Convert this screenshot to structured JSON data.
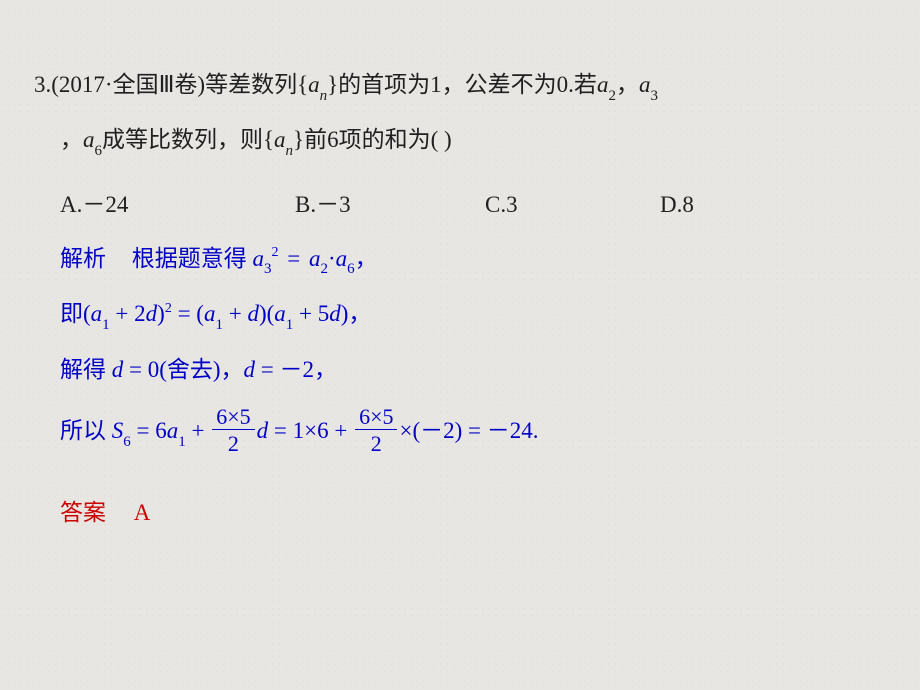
{
  "colors": {
    "background": "#e7e6e2",
    "text_main": "#202020",
    "text_blue": "#0200c6",
    "text_red": "#cc0200"
  },
  "typography": {
    "family": "Times New Roman / SimSun serif",
    "base_fontsize_pt": 17,
    "subscript_fontsize_pt": 11,
    "superscript_fontsize_pt": 10
  },
  "question": {
    "number": "3.",
    "source_prefix": "(2017·全国Ⅲ卷)",
    "line1_part1": "等差数列{",
    "seq_var": "a",
    "seq_sub": "n",
    "line1_part2": "}的首项为1，公差不为0.若",
    "a2_var": "a",
    "a2_sub": "2",
    "comma1": "，",
    "a3_var": "a",
    "a3_sub": "3",
    "line2_lead_comma": "，",
    "a6_var": "a",
    "a6_sub": "6",
    "line2_mid": "成等比数列，则{",
    "line2_end": "}前6项的和为(       )",
    "options": {
      "A": "A.－24",
      "B": "B.－3",
      "C": "C.3",
      "D": "D.8"
    }
  },
  "solution": {
    "label": "解析",
    "line1_a": "根据题意得 ",
    "l1_var1": "a",
    "l1_sub1": "3",
    "l1_sup1": "2",
    "l1_eq": " = ",
    "l1_var2": "a",
    "l1_sub2": "2",
    "l1_dot": "·",
    "l1_var3": "a",
    "l1_sub3": "6",
    "l1_tail": "，",
    "line2_a": "即(",
    "l2_var1": "a",
    "l2_sub1": "1",
    "l2_plus1": " + 2",
    "l2_d1": "d",
    "l2_rp_sq": ")",
    "l2_sup": "2",
    "l2_eq": " = (",
    "l2_var2": "a",
    "l2_sub2": "1",
    "l2_plus2": " + ",
    "l2_d2": "d",
    "l2_mid": ")(",
    "l2_var3": "a",
    "l2_sub3": "1",
    "l2_plus3": " + 5",
    "l2_d3": "d",
    "l2_tail": ")，",
    "line3_a": "解得 ",
    "l3_d1": "d",
    "l3_mid1": " = 0(舍去)，",
    "l3_d2": "d",
    "l3_mid2": " = －2，",
    "line4_a": "所以 ",
    "l4_S": "S",
    "l4_S_sub": "6",
    "l4_eq1": " = 6",
    "l4_a": "a",
    "l4_a_sub": "1",
    "l4_plus": " + ",
    "frac1": {
      "num": "6×5",
      "den": "2"
    },
    "l4_d": "d",
    "l4_eq2": " = 1×6 + ",
    "frac2": {
      "num": "6×5",
      "den": "2"
    },
    "l4_tail": "×(－2) = －24.",
    "answer_label": "答案",
    "answer_value": "A"
  }
}
